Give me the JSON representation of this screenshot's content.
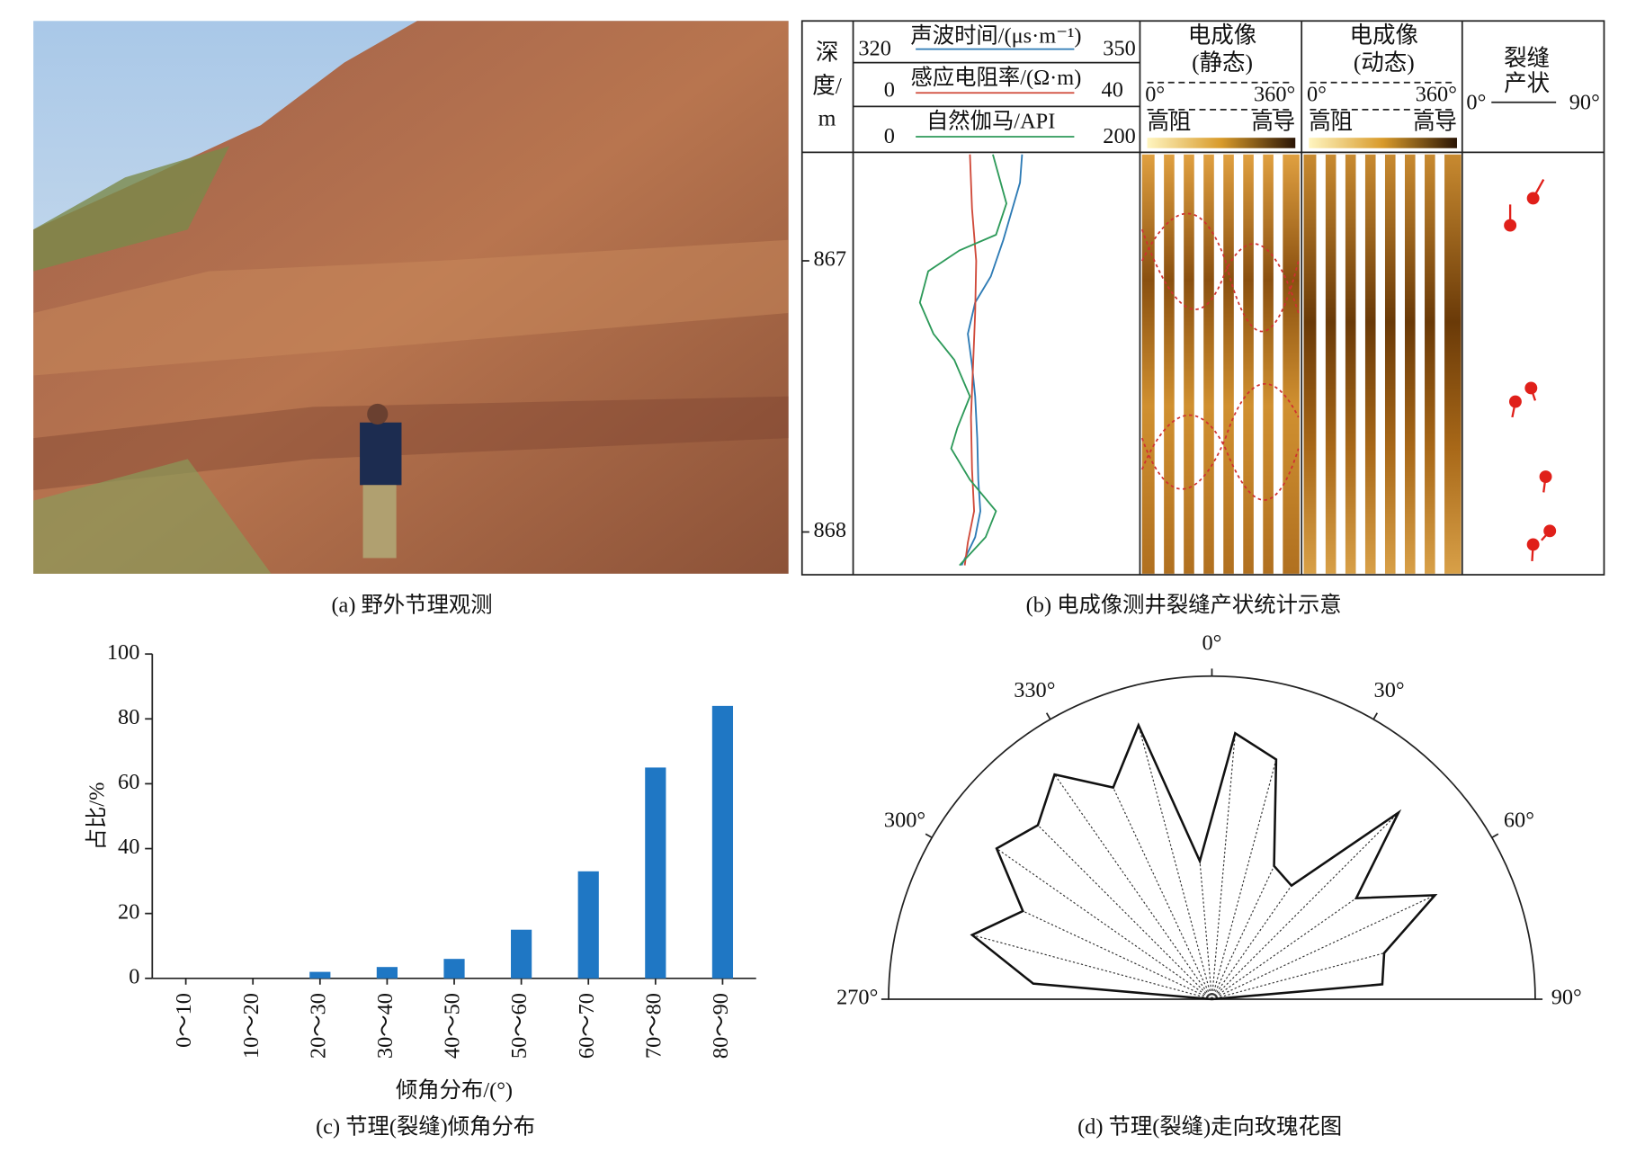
{
  "figure": {
    "captions": [
      "(a)  野外节理观测",
      "(b)  电成像测井裂缝产状统计示意",
      "(c)  节理(裂缝)倾角分布",
      "(d)  节理(裂缝)走向玫瑰花图"
    ],
    "log": {
      "depth_header": [
        "深",
        "度/",
        "m"
      ],
      "depth_ticks": [
        867,
        868
      ],
      "curves": [
        {
          "name": "声波时间/(μs·m⁻¹)",
          "min": 320,
          "max": 350,
          "color": "#2e7bb5"
        },
        {
          "name": "感应电阻率/(Ω·m)",
          "min": 0,
          "max": 40,
          "color": "#d04a3a"
        },
        {
          "name": "自然伽马/API",
          "min": 0,
          "max": 200,
          "color": "#2e9a5a"
        }
      ],
      "image_tracks": [
        {
          "title": "电成像",
          "mode": "(静态)",
          "start": "0°",
          "end": "360°",
          "low": "高阻",
          "high": "高导"
        },
        {
          "title": "电成像",
          "mode": "(动态)",
          "start": "0°",
          "end": "360°",
          "low": "高阻",
          "high": "高导"
        }
      ],
      "fracture": {
        "title": [
          "裂缝",
          "产状"
        ],
        "min": "0°",
        "max": "90°"
      }
    }
  },
  "chart_data": [
    {
      "type": "bar",
      "categories": [
        "0～10",
        "10～20",
        "20～30",
        "30～40",
        "40～50",
        "50～60",
        "60～70",
        "70～80",
        "80～90"
      ],
      "values": [
        0,
        0,
        2,
        3.5,
        6,
        15,
        33,
        65,
        84
      ],
      "color": "#1f77c4",
      "xlabel": "倾角分布/(°)",
      "ylabel": "占比/%",
      "ylim": [
        0,
        100
      ],
      "yticks": [
        0,
        20,
        40,
        60,
        80,
        100
      ]
    },
    {
      "type": "rose",
      "x": [
        275,
        285,
        295,
        305,
        315,
        325,
        335,
        345,
        355,
        5,
        15,
        25,
        35,
        45,
        55,
        65,
        75,
        85
      ],
      "values": [
        172,
        238,
        200,
        252,
        236,
        263,
        224,
        272,
        133,
        256,
        238,
        141,
        133,
        253,
        169,
        236,
        171,
        164
      ],
      "rlim": [
        0,
        310
      ],
      "angle_ticks": [
        {
          "value": 270,
          "label": "270°"
        },
        {
          "value": 300,
          "label": "300°"
        },
        {
          "value": 330,
          "label": "330°"
        },
        {
          "value": 0,
          "label": "0°"
        },
        {
          "value": 30,
          "label": "30°"
        },
        {
          "value": 60,
          "label": "60°"
        },
        {
          "value": 90,
          "label": "90°"
        }
      ]
    }
  ]
}
